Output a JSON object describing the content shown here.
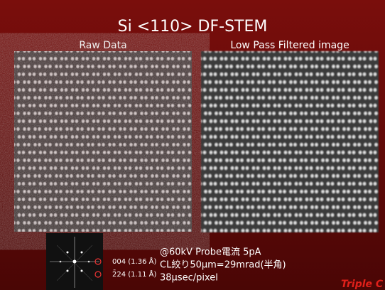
{
  "header": {
    "title": "Si <110> DF-STEM"
  },
  "panels": [
    {
      "label": "Raw Data"
    },
    {
      "label": "Low Pass Filtered image"
    }
  ],
  "fft": {
    "spots": [
      "004 (1.36 Å)",
      "2̄24 (1.11 Å)"
    ]
  },
  "conditions": [
    "@60kV  Probe電流 5pA",
    "CL絞り50μm=29mrad(半角)",
    "38μsec/pixel"
  ],
  "footer": "Triple C"
}
